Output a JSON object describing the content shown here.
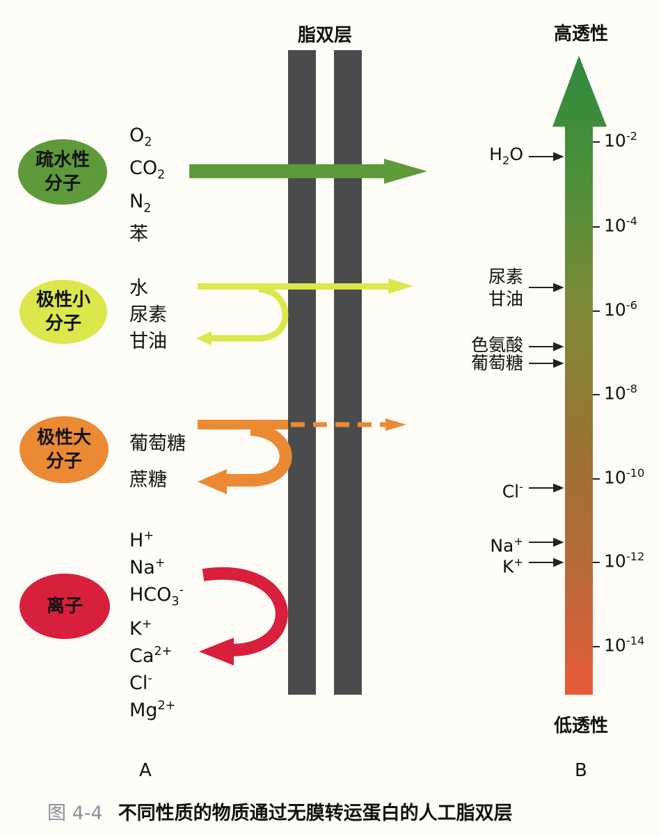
{
  "bilayer_label": "脂双层",
  "panel_a_label": "A",
  "panel_b_label": "B",
  "categories": [
    {
      "label_lines": [
        "疏水性",
        "分子"
      ],
      "color": "#5f9a3a",
      "species": [
        {
          "base": "O",
          "sub": "2"
        },
        {
          "base": "CO",
          "sub": "2"
        },
        {
          "base": "N",
          "sub": "2"
        },
        {
          "base": "苯"
        }
      ],
      "arrow": "passes"
    },
    {
      "label_lines": [
        "极性小",
        "分子"
      ],
      "color": "#dbe74a",
      "species": [
        {
          "base": "水"
        },
        {
          "base": "尿素"
        },
        {
          "base": "甘油"
        }
      ],
      "arrow": "passes-partly-reflects"
    },
    {
      "label_lines": [
        "极性大",
        "分子"
      ],
      "color": "#ec8a34",
      "species": [
        {
          "base": "葡萄糖"
        },
        {
          "base": "蔗糖"
        }
      ],
      "arrow": "mostly-reflects"
    },
    {
      "label_lines": [
        "离子"
      ],
      "color": "#d81f3c",
      "species": [
        {
          "base": "H",
          "sup": "+"
        },
        {
          "base": "Na",
          "sup": "+"
        },
        {
          "base": "HCO",
          "sub": "3",
          "sup": "-"
        },
        {
          "base": "K",
          "sup": "+"
        },
        {
          "base": "Ca",
          "sup": "2+"
        },
        {
          "base": "Cl",
          "sup": "-"
        },
        {
          "base": "Mg",
          "sup": "2+"
        }
      ],
      "arrow": "reflects"
    }
  ],
  "scale": {
    "top_label": "高透性",
    "bottom_label": "低透性",
    "ticks": [
      {
        "base": "10",
        "exp": "-2"
      },
      {
        "base": "10",
        "exp": "-4"
      },
      {
        "base": "10",
        "exp": "-6"
      },
      {
        "base": "10",
        "exp": "-8"
      },
      {
        "base": "10",
        "exp": "-10"
      },
      {
        "base": "10",
        "exp": "-12"
      },
      {
        "base": "10",
        "exp": "-14"
      }
    ],
    "molecules": [
      {
        "base": "H",
        "sub": "2",
        "tail": "O"
      },
      {
        "base": "尿素"
      },
      {
        "base": "甘油"
      },
      {
        "base": "色氨酸"
      },
      {
        "base": "葡萄糖"
      },
      {
        "base": "Cl",
        "sup": "-"
      },
      {
        "base": "Na",
        "sup": "+"
      },
      {
        "base": "K",
        "sup": "+"
      }
    ]
  },
  "caption": {
    "figure": "图 4-4",
    "text": "不同性质的物质通过无膜转运蛋白的人工脂双层"
  }
}
